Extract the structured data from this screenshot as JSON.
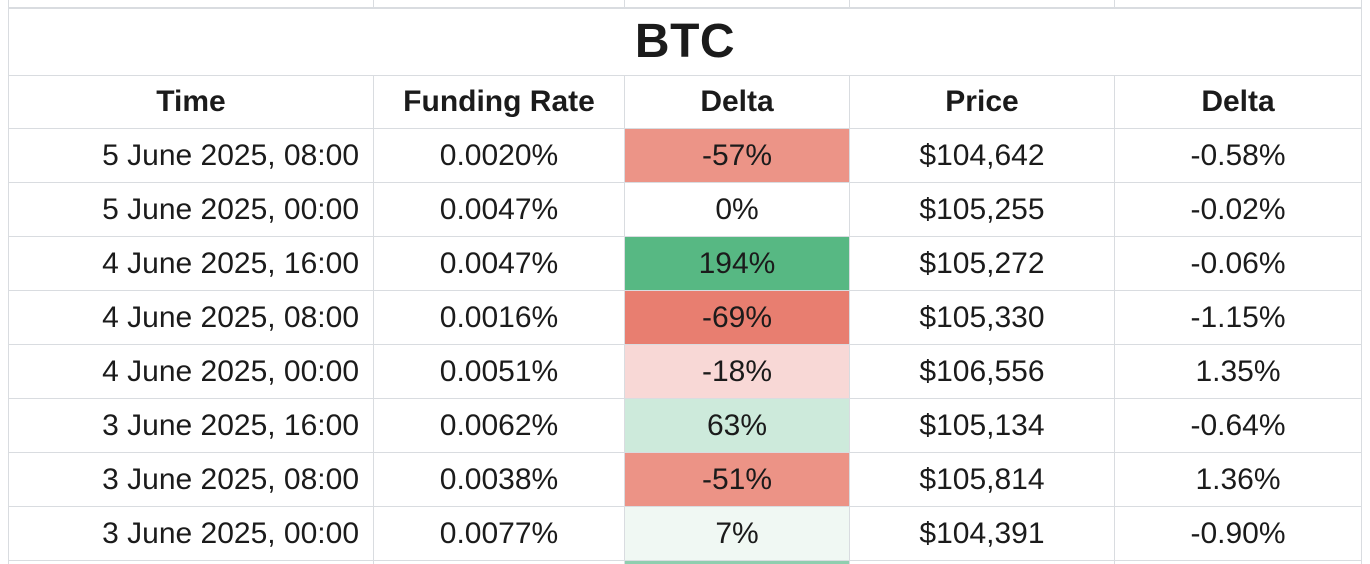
{
  "chart_data": {
    "type": "table",
    "title": "BTC",
    "columns": [
      "Time",
      "Funding Rate",
      "Delta",
      "Price",
      "Delta"
    ],
    "rows": [
      {
        "time": "5 June 2025, 08:00",
        "funding_rate": "0.0020%",
        "funding_delta": "-57%",
        "funding_delta_bg": "#EC9487",
        "price": "$104,642",
        "price_delta": "-0.58%"
      },
      {
        "time": "5 June 2025, 00:00",
        "funding_rate": "0.0047%",
        "funding_delta": "0%",
        "funding_delta_bg": "#FFFFFF",
        "price": "$105,255",
        "price_delta": "-0.02%"
      },
      {
        "time": "4 June 2025, 16:00",
        "funding_rate": "0.0047%",
        "funding_delta": "194%",
        "funding_delta_bg": "#57B883",
        "price": "$105,272",
        "price_delta": "-0.06%"
      },
      {
        "time": "4 June 2025, 08:00",
        "funding_rate": "0.0016%",
        "funding_delta": "-69%",
        "funding_delta_bg": "#E87E70",
        "price": "$105,330",
        "price_delta": "-1.15%"
      },
      {
        "time": "4 June 2025, 00:00",
        "funding_rate": "0.0051%",
        "funding_delta": "-18%",
        "funding_delta_bg": "#F8D8D6",
        "price": "$106,556",
        "price_delta": "1.35%"
      },
      {
        "time": "3 June 2025, 16:00",
        "funding_rate": "0.0062%",
        "funding_delta": "63%",
        "funding_delta_bg": "#CDEADB",
        "price": "$105,134",
        "price_delta": "-0.64%"
      },
      {
        "time": "3 June 2025, 08:00",
        "funding_rate": "0.0038%",
        "funding_delta": "-51%",
        "funding_delta_bg": "#EC9386",
        "price": "$105,814",
        "price_delta": "1.36%"
      },
      {
        "time": "3 June 2025, 00:00",
        "funding_rate": "0.0077%",
        "funding_delta": "7%",
        "funding_delta_bg": "#F0F8F3",
        "price": "$104,391",
        "price_delta": "-0.90%"
      }
    ],
    "next_row_partial": {
      "funding_delta_bg": "#8FCEAF"
    },
    "layout_hints": {
      "grid": "on",
      "time_alignment": "right",
      "other_alignment": "center",
      "delta_column_color_scale": {
        "strong_negative": "#E87E70",
        "medium_negative": "#EC9487",
        "light_negative": "#F8D8D6",
        "neutral": "#FFFFFF",
        "light_positive": "#F0F8F3",
        "medium_positive": "#CDEADB",
        "strong_positive": "#57B883"
      },
      "grid_line_color": "#d9dce0",
      "text_color": "#1b1b1b"
    }
  }
}
